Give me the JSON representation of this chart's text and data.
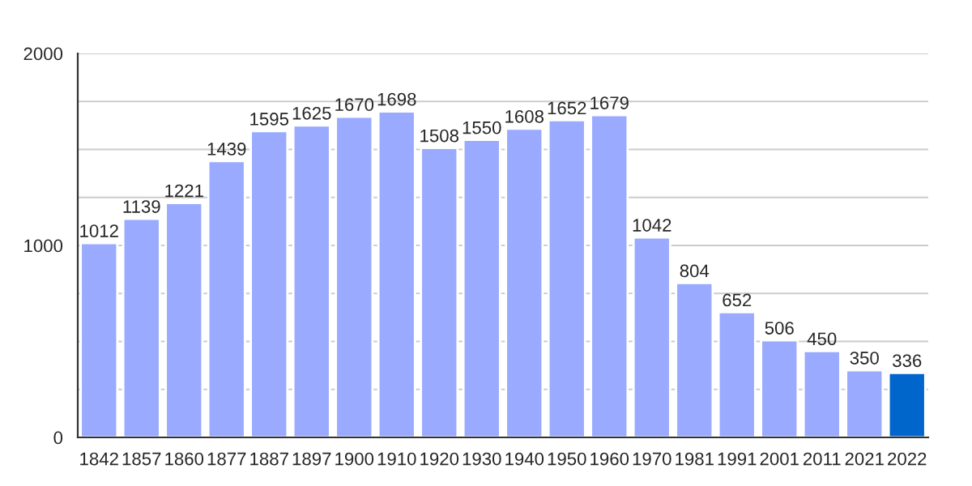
{
  "chart_data": {
    "type": "bar",
    "categories": [
      "1842",
      "1857",
      "1860",
      "1877",
      "1887",
      "1897",
      "1900",
      "1910",
      "1920",
      "1930",
      "1940",
      "1950",
      "1960",
      "1970",
      "1981",
      "1991",
      "2001",
      "2011",
      "2021",
      "2022"
    ],
    "values": [
      1012,
      1139,
      1221,
      1439,
      1595,
      1625,
      1670,
      1698,
      1508,
      1550,
      1608,
      1652,
      1679,
      1042,
      804,
      652,
      506,
      450,
      350,
      336
    ],
    "colors": [
      "#99aaff",
      "#99aaff",
      "#99aaff",
      "#99aaff",
      "#99aaff",
      "#99aaff",
      "#99aaff",
      "#99aaff",
      "#99aaff",
      "#99aaff",
      "#99aaff",
      "#99aaff",
      "#99aaff",
      "#99aaff",
      "#99aaff",
      "#99aaff",
      "#99aaff",
      "#99aaff",
      "#99aaff",
      "#0066cc"
    ],
    "ylim": [
      0,
      2000
    ],
    "yticks": [
      0,
      {
        "value": 250,
        "label": null
      },
      {
        "value": 500,
        "label": null
      },
      {
        "value": 750,
        "label": null
      },
      1000,
      {
        "value": 1250,
        "label": null
      },
      {
        "value": 1500,
        "label": null
      },
      {
        "value": 1750,
        "label": null
      },
      2000
    ],
    "grid": "y",
    "data_labels": true
  }
}
